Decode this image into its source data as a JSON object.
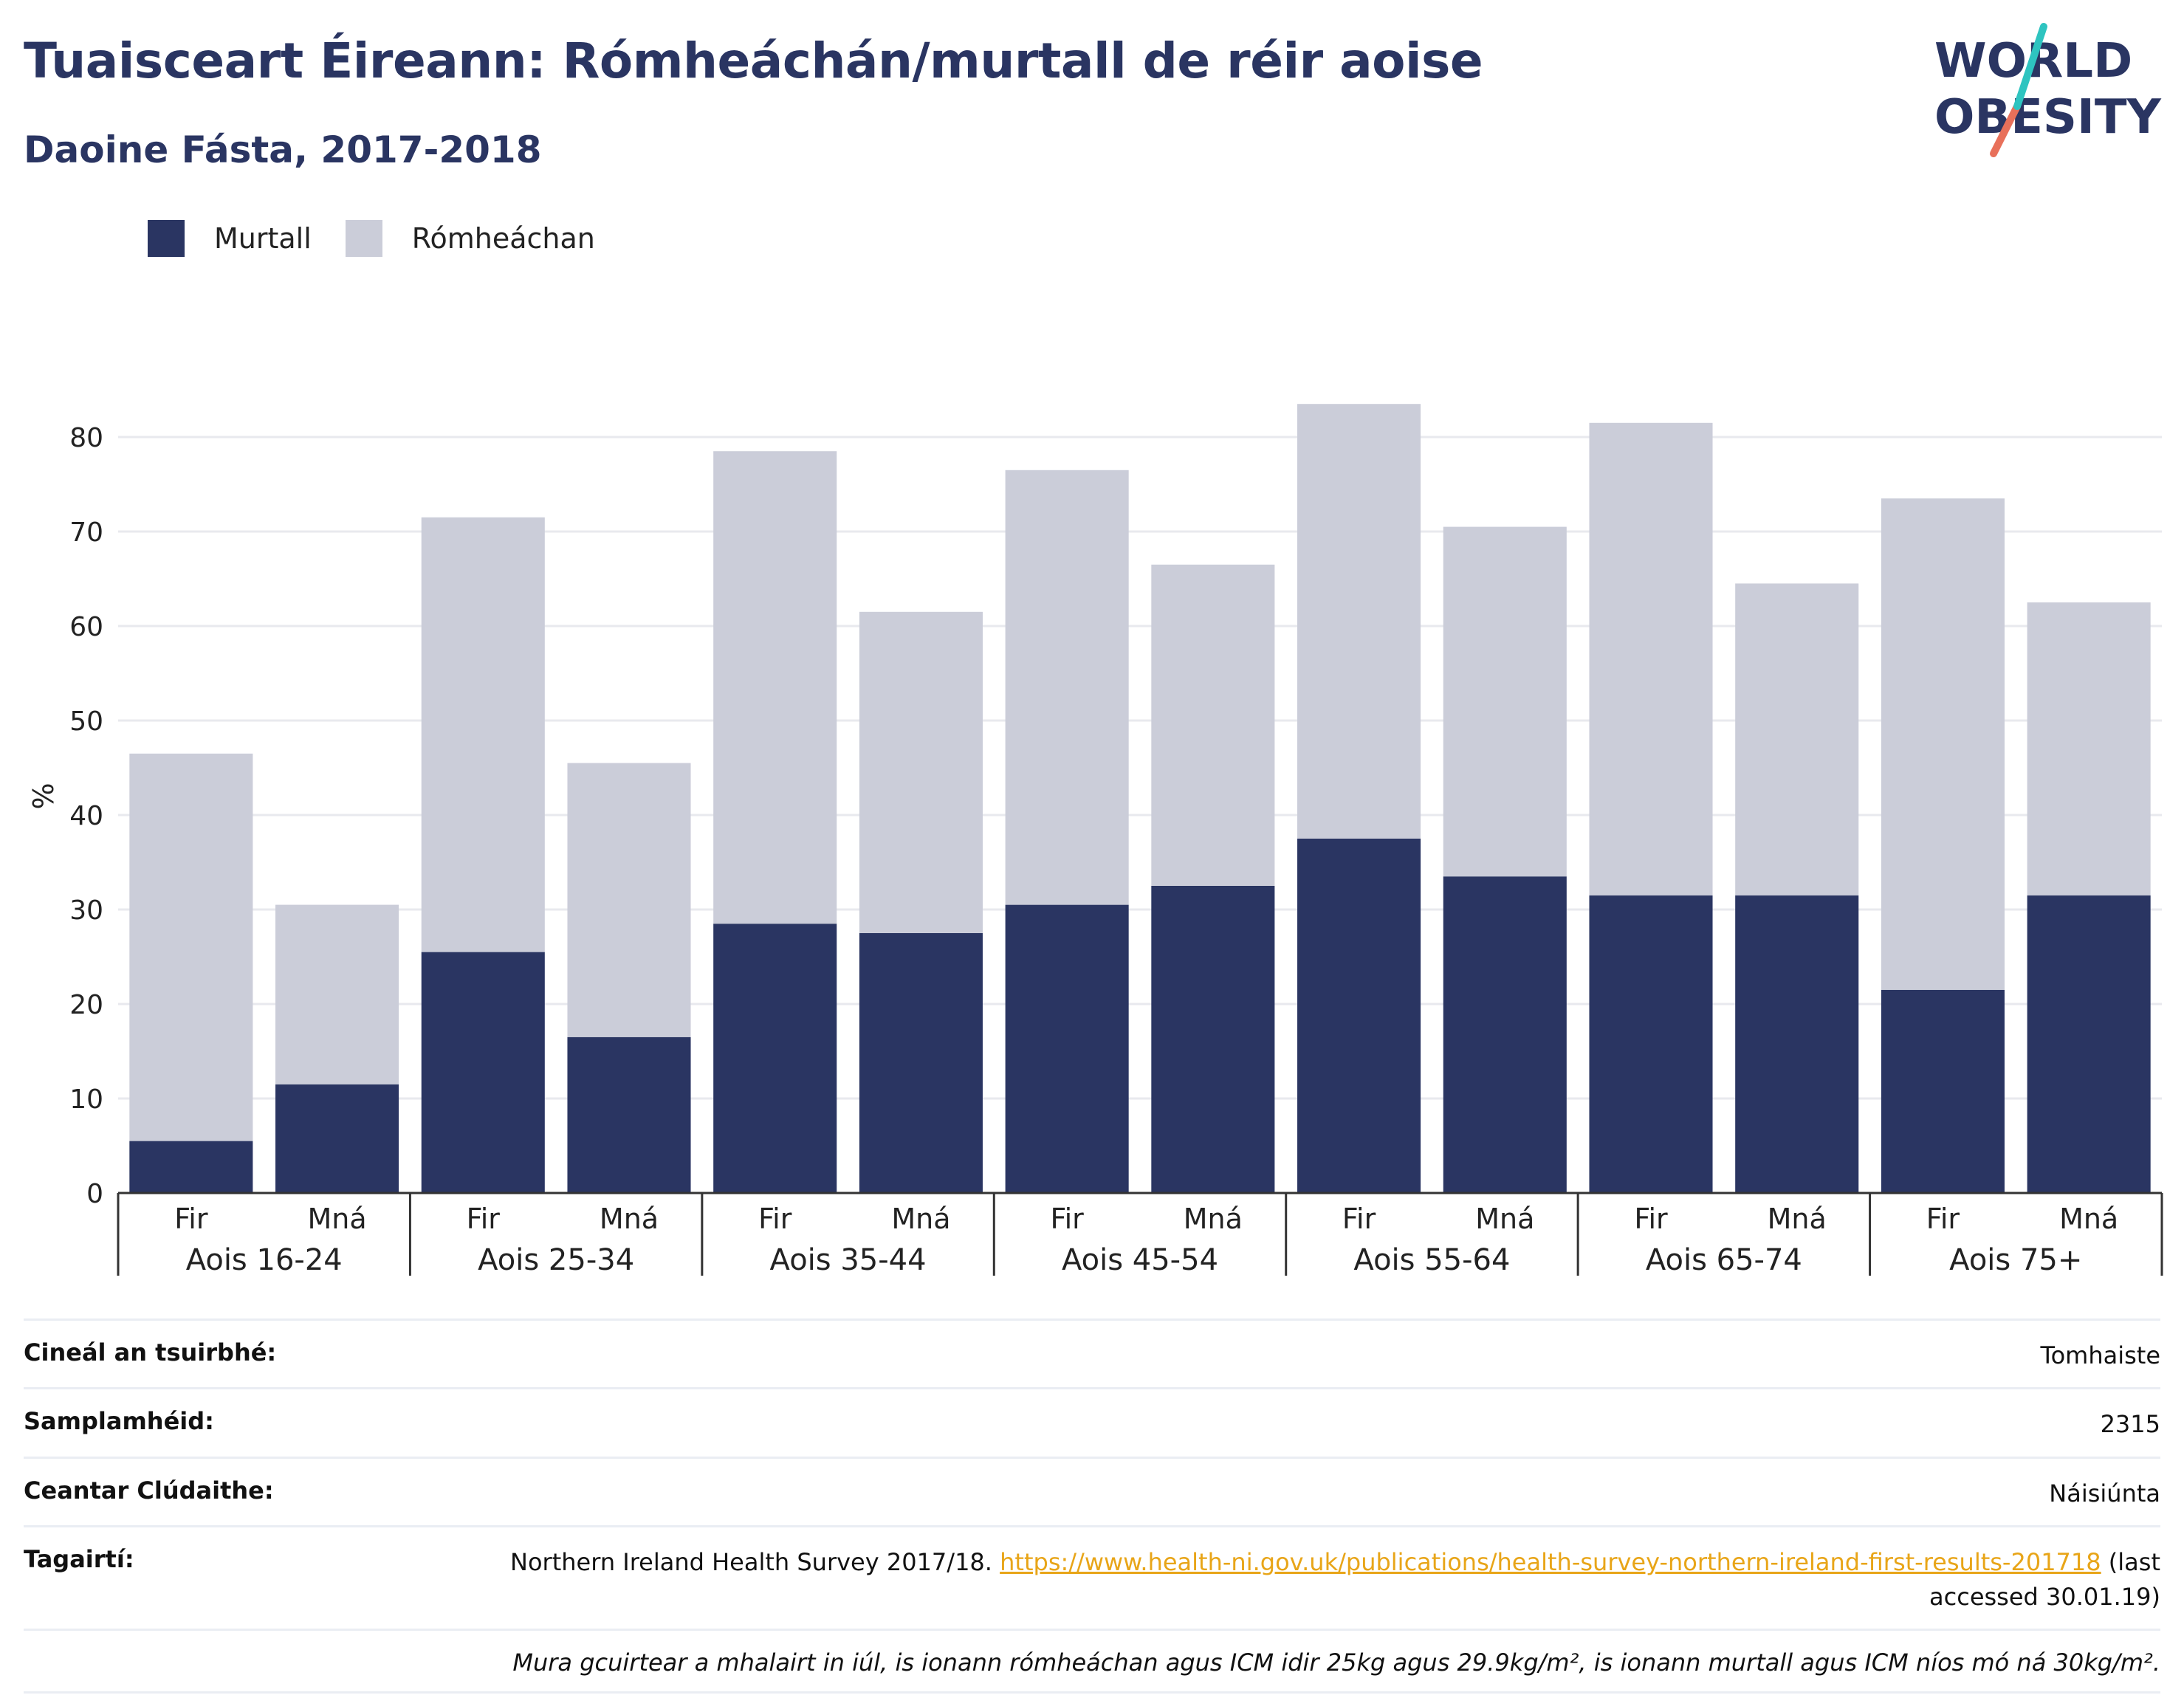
{
  "header": {
    "title": "Tuaisceart Éireann: Rómheáchán/murtall de réir aoise",
    "subtitle": "Daoine Fásta, 2017-2018"
  },
  "logo": {
    "line1": "WORLD",
    "line2": "OBESITY",
    "icon": "world-obesity-logo"
  },
  "colors": {
    "obesity": "#2a3562",
    "overweight": "#cbcdd9",
    "accent_teal": "#2ec4c0",
    "accent_red": "#e8705a",
    "link": "#e8a518"
  },
  "chart_data": {
    "type": "bar",
    "stacked": true,
    "ylabel": "%",
    "ylim": [
      0,
      85
    ],
    "yticks": [
      0,
      10,
      20,
      30,
      40,
      50,
      60,
      70,
      80
    ],
    "grid": true,
    "legend_position": "top-left",
    "groups": [
      "Aois 16-24",
      "Aois 25-34",
      "Aois 35-44",
      "Aois 45-54",
      "Aois 55-64",
      "Aois 65-74",
      "Aois 75+"
    ],
    "sub_categories": [
      "Fir",
      "Mná"
    ],
    "series": [
      {
        "name": "Murtall",
        "color": "#2a3562",
        "values": [
          5.5,
          11.5,
          25.5,
          16.5,
          28.5,
          27.5,
          30.5,
          32.5,
          37.5,
          33.5,
          31.5,
          31.5,
          21.5,
          31.5
        ]
      },
      {
        "name": "Rómheáchan",
        "color": "#cbcdd9",
        "values": [
          41,
          19,
          46,
          29,
          50,
          34,
          46,
          34,
          46,
          37,
          50,
          33,
          52,
          31
        ]
      }
    ]
  },
  "info_table": {
    "survey_type": {
      "label": "Cineál an tsuirbhé:",
      "value": "Tomhaiste"
    },
    "sample_size": {
      "label": "Samplamhéid:",
      "value": "2315"
    },
    "area": {
      "label": "Ceantar Clúdaithe:",
      "value": "Náisiúnta"
    },
    "references": {
      "label": "Tagairtí:",
      "text_before": "Northern Ireland Health Survey 2017/18.",
      "link": "https://www.health-ni.gov.uk/publications/health-survey-northern-ireland-first-results-201718",
      "text_after": "(last accessed 30.01.19)"
    },
    "note": "Mura gcuirtear a mhalairt in iúl, is ionann rómheáchan agus ICM idir 25kg agus 29.9kg/m², is ionann murtall agus ICM níos mó ná 30kg/m²."
  }
}
